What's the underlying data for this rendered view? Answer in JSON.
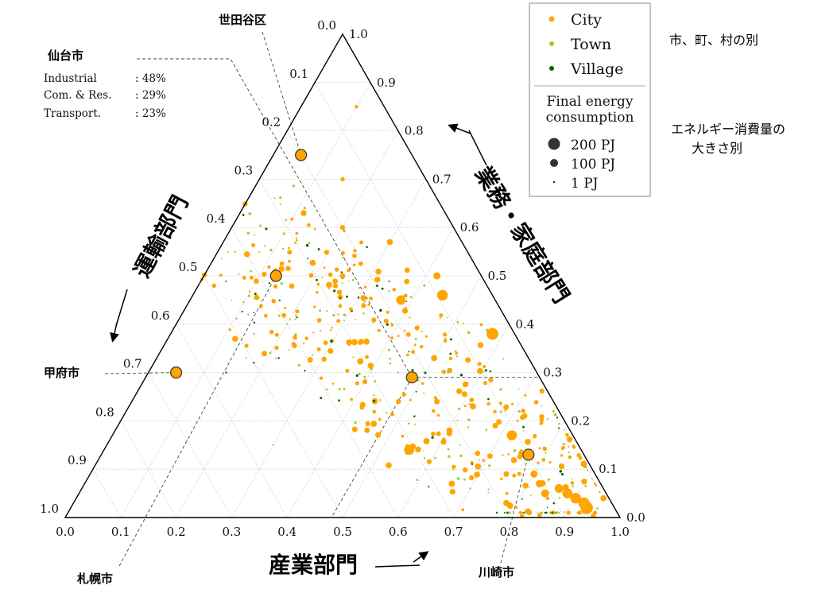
{
  "chart_data": {
    "type": "scatter",
    "subtype": "ternary",
    "axes": {
      "bottom": {
        "label": "産業部門",
        "ticks": [
          "0.0",
          "0.1",
          "0.2",
          "0.3",
          "0.4",
          "0.5",
          "0.6",
          "0.7",
          "0.8",
          "0.9",
          "1.0"
        ]
      },
      "right": {
        "label": "業務・家庭部門",
        "ticks": [
          "0.0",
          "0.1",
          "0.2",
          "0.3",
          "0.4",
          "0.5",
          "0.6",
          "0.7",
          "0.8",
          "0.9",
          "1.0"
        ]
      },
      "left": {
        "label": "運輸部門",
        "ticks": [
          "0.0",
          "0.1",
          "0.2",
          "0.3",
          "0.4",
          "0.5",
          "0.6",
          "0.7",
          "0.8",
          "0.9",
          "1.0"
        ]
      }
    },
    "legend": {
      "position": "top-right",
      "type_items": [
        {
          "label": "City",
          "color": "#ffa500"
        },
        {
          "label": "Town",
          "color": "#9acd32"
        },
        {
          "label": "Village",
          "color": "#006400"
        }
      ],
      "size_title": "Final energy consumption",
      "size_items": [
        {
          "label": "200 PJ",
          "value": 200
        },
        {
          "label": "100 PJ",
          "value": 100
        },
        {
          "label": "1 PJ",
          "value": 1
        }
      ]
    },
    "side_notes": {
      "type_note": "市、町、村の別",
      "size_note_line1": "エネルギー消費量の",
      "size_note_line2": "大きさ別"
    },
    "highlighted_cities": [
      {
        "name": "仙台市",
        "industrial": 0.48,
        "commercial_residential": 0.29,
        "transport": 0.23,
        "detail": [
          {
            "label": "Industrial",
            "value": ": 48%"
          },
          {
            "label": "Com. & Res.",
            "value": ": 29%"
          },
          {
            "label": "Transport.",
            "value": ": 23%"
          }
        ]
      },
      {
        "name": "世田谷区",
        "industrial": 0.05,
        "commercial_residential": 0.75,
        "transport": 0.2
      },
      {
        "name": "甲府市",
        "industrial": 0.05,
        "commercial_residential": 0.3,
        "transport": 0.65
      },
      {
        "name": "札幌市",
        "industrial": 0.13,
        "commercial_residential": 0.5,
        "transport": 0.37
      },
      {
        "name": "川崎市",
        "industrial": 0.77,
        "commercial_residential": 0.13,
        "transport": 0.1
      }
    ],
    "cluster_points": [
      {
        "type": "City",
        "industrial": 0.93,
        "commercial_residential": 0.02,
        "transport": 0.05,
        "energy": 120
      },
      {
        "type": "City",
        "industrial": 0.92,
        "commercial_residential": 0.03,
        "transport": 0.05,
        "energy": 100
      },
      {
        "type": "City",
        "industrial": 0.9,
        "commercial_residential": 0.04,
        "transport": 0.06,
        "energy": 90
      },
      {
        "type": "City",
        "industrial": 0.88,
        "commercial_residential": 0.05,
        "transport": 0.07,
        "energy": 80
      },
      {
        "type": "City",
        "industrial": 0.86,
        "commercial_residential": 0.06,
        "transport": 0.08,
        "energy": 60
      },
      {
        "type": "City",
        "industrial": 0.84,
        "commercial_residential": 0.05,
        "transport": 0.11,
        "energy": 50
      },
      {
        "type": "City",
        "industrial": 0.82,
        "commercial_residential": 0.07,
        "transport": 0.11,
        "energy": 45
      },
      {
        "type": "City",
        "industrial": 0.8,
        "commercial_residential": 0.09,
        "transport": 0.11,
        "energy": 40
      },
      {
        "type": "City",
        "industrial": 0.78,
        "commercial_residential": 0.03,
        "transport": 0.19,
        "energy": 30
      },
      {
        "type": "City",
        "industrial": 0.75,
        "commercial_residential": 0.09,
        "transport": 0.16,
        "energy": 25
      },
      {
        "type": "City",
        "industrial": 0.72,
        "commercial_residential": 0.17,
        "transport": 0.11,
        "energy": 80
      },
      {
        "type": "City",
        "industrial": 0.68,
        "commercial_residential": 0.19,
        "transport": 0.13,
        "energy": 25
      },
      {
        "type": "City",
        "industrial": 0.62,
        "commercial_residential": 0.23,
        "transport": 0.15,
        "energy": 30
      },
      {
        "type": "City",
        "industrial": 0.58,
        "commercial_residential": 0.38,
        "transport": 0.04,
        "energy": 110
      },
      {
        "type": "City",
        "industrial": 0.55,
        "commercial_residential": 0.24,
        "transport": 0.21,
        "energy": 25
      },
      {
        "type": "City",
        "industrial": 0.5,
        "commercial_residential": 0.33,
        "transport": 0.17,
        "energy": 30
      },
      {
        "type": "City",
        "industrial": 0.45,
        "commercial_residential": 0.46,
        "transport": 0.09,
        "energy": 90
      },
      {
        "type": "City",
        "industrial": 0.42,
        "commercial_residential": 0.5,
        "transport": 0.08,
        "energy": 40
      },
      {
        "type": "City",
        "industrial": 0.38,
        "commercial_residential": 0.45,
        "transport": 0.17,
        "energy": 70
      },
      {
        "type": "City",
        "industrial": 0.3,
        "commercial_residential": 0.57,
        "transport": 0.13,
        "energy": 30
      },
      {
        "type": "City",
        "industrial": 0.25,
        "commercial_residential": 0.5,
        "transport": 0.25,
        "energy": 25
      },
      {
        "type": "City",
        "industrial": 0.2,
        "commercial_residential": 0.6,
        "transport": 0.2,
        "energy": 20
      },
      {
        "type": "City",
        "industrial": 0.15,
        "commercial_residential": 0.7,
        "transport": 0.15,
        "energy": 15
      },
      {
        "type": "City",
        "industrial": 0.1,
        "commercial_residential": 0.85,
        "transport": 0.05,
        "energy": 10
      },
      {
        "type": "City",
        "industrial": 0.55,
        "commercial_residential": 0.14,
        "transport": 0.31,
        "energy": 80
      },
      {
        "type": "Town",
        "industrial": 0.12,
        "commercial_residential": 0.42,
        "transport": 0.46,
        "energy": 2
      },
      {
        "type": "Town",
        "industrial": 0.15,
        "commercial_residential": 0.38,
        "transport": 0.47,
        "energy": 2
      },
      {
        "type": "Town",
        "industrial": 0.2,
        "commercial_residential": 0.4,
        "transport": 0.4,
        "energy": 2
      },
      {
        "type": "Town",
        "industrial": 0.25,
        "commercial_residential": 0.36,
        "transport": 0.39,
        "energy": 2
      },
      {
        "type": "Town",
        "industrial": 0.45,
        "commercial_residential": 0.3,
        "transport": 0.25,
        "energy": 2
      },
      {
        "type": "Town",
        "industrial": 0.7,
        "commercial_residential": 0.06,
        "transport": 0.24,
        "energy": 2
      },
      {
        "type": "Town",
        "industrial": 0.3,
        "commercial_residential": 0.15,
        "transport": 0.55,
        "energy": 2
      },
      {
        "type": "Village",
        "industrial": 0.18,
        "commercial_residential": 0.32,
        "transport": 0.5,
        "energy": 1
      },
      {
        "type": "Village",
        "industrial": 0.22,
        "commercial_residential": 0.33,
        "transport": 0.45,
        "energy": 1
      },
      {
        "type": "Village",
        "industrial": 0.14,
        "commercial_residential": 0.3,
        "transport": 0.56,
        "energy": 1
      },
      {
        "type": "Village",
        "industrial": 0.86,
        "commercial_residential": 0.01,
        "transport": 0.13,
        "energy": 1
      }
    ]
  }
}
